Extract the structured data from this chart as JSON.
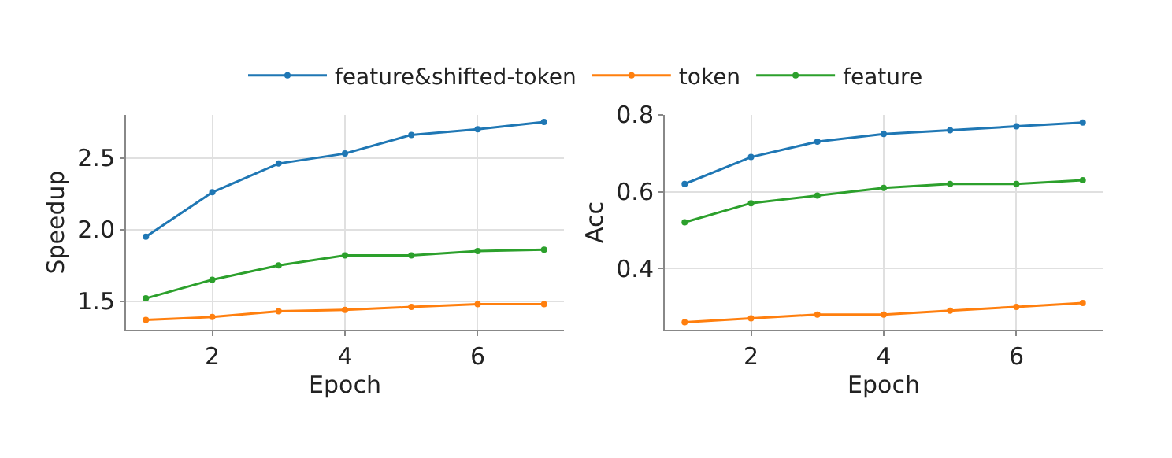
{
  "chart_data": [
    {
      "type": "line",
      "xlabel": "Epoch",
      "ylabel": "Speedup",
      "x": [
        1,
        2,
        3,
        4,
        5,
        6,
        7
      ],
      "xlim": [
        0.7,
        7.3
      ],
      "xticks": [
        2,
        4,
        6
      ],
      "ylim": [
        1.3,
        2.8
      ],
      "yticks": [
        1.5,
        {
          "value": 2.0,
          "label": "2.0"
        },
        2.5
      ],
      "grid": true,
      "legend": "top",
      "marker": "circle",
      "line_style": "solid",
      "series": [
        {
          "name": "feature&shifted-token",
          "color": "#1f77b4",
          "values": [
            1.95,
            2.26,
            2.46,
            2.53,
            2.66,
            2.7,
            2.75
          ]
        },
        {
          "name": "token",
          "color": "#ff7f0e",
          "values": [
            1.37,
            1.39,
            1.43,
            1.44,
            1.46,
            1.48,
            1.48
          ]
        },
        {
          "name": "feature",
          "color": "#2ca02c",
          "values": [
            1.52,
            1.65,
            1.75,
            1.82,
            1.82,
            1.85,
            1.86
          ]
        }
      ]
    },
    {
      "type": "line",
      "xlabel": "Epoch",
      "ylabel": "Acc",
      "x": [
        1,
        2,
        3,
        4,
        5,
        6,
        7
      ],
      "xlim": [
        0.7,
        7.3
      ],
      "xticks": [
        2,
        4,
        6
      ],
      "ylim": [
        0.24,
        0.8
      ],
      "yticks": [
        0.4,
        0.6,
        0.8
      ],
      "grid": true,
      "legend": false,
      "marker": "circle",
      "line_style": "solid",
      "series": [
        {
          "color": "#1f77b4",
          "values": [
            0.62,
            0.69,
            0.73,
            0.75,
            0.76,
            0.77,
            0.78
          ]
        },
        {
          "color": "#ff7f0e",
          "values": [
            0.26,
            0.27,
            0.28,
            0.28,
            0.29,
            0.3,
            0.31
          ]
        },
        {
          "color": "#2ca02c",
          "values": [
            0.52,
            0.57,
            0.59,
            0.61,
            0.62,
            0.62,
            0.63
          ]
        }
      ]
    }
  ]
}
